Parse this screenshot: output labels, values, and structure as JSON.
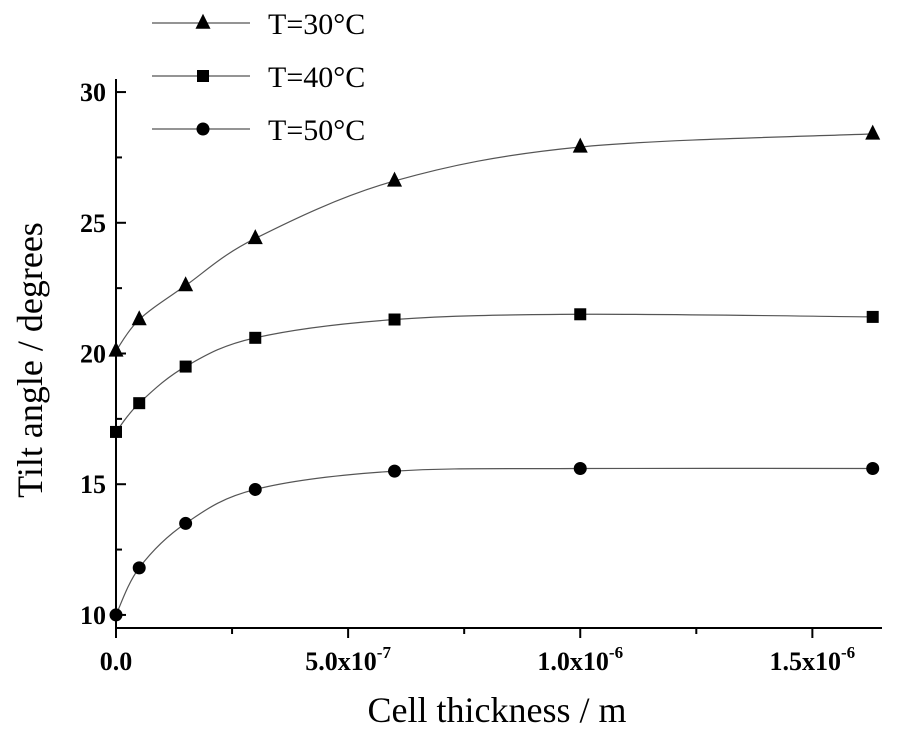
{
  "chart_data": {
    "type": "line",
    "title": "",
    "xlabel": "Cell thickness / m",
    "ylabel": "Tilt angle / degrees",
    "xlim": [
      0,
      1.65e-06
    ],
    "ylim": [
      9.5,
      30.5
    ],
    "x_ticks": [
      {
        "value": 0,
        "label": "0.0",
        "sup": ""
      },
      {
        "value": 5e-07,
        "label": "5.0x10",
        "sup": "-7"
      },
      {
        "value": 1e-06,
        "label": "1.0x10",
        "sup": "-6"
      },
      {
        "value": 1.5e-06,
        "label": "1.5x10",
        "sup": "-6"
      }
    ],
    "y_ticks": [
      {
        "value": 10,
        "label": "10"
      },
      {
        "value": 15,
        "label": "15"
      },
      {
        "value": 20,
        "label": "20"
      },
      {
        "value": 25,
        "label": "25"
      },
      {
        "value": 30,
        "label": "30"
      }
    ],
    "grid": false,
    "legend_position": "top-left, above plot",
    "series": [
      {
        "name": "T=30°C",
        "marker": "triangle",
        "x": [
          0,
          5e-08,
          1.5e-07,
          3e-07,
          6e-07,
          1e-06,
          1.63e-06
        ],
        "y": [
          20.1,
          21.3,
          22.6,
          24.4,
          26.6,
          27.9,
          28.4
        ]
      },
      {
        "name": "T=40°C",
        "marker": "square",
        "x": [
          0,
          5e-08,
          1.5e-07,
          3e-07,
          6e-07,
          1e-06,
          1.63e-06
        ],
        "y": [
          17.0,
          18.1,
          19.5,
          20.6,
          21.3,
          21.5,
          21.4
        ]
      },
      {
        "name": "T=50°C",
        "marker": "circle",
        "x": [
          0,
          5e-08,
          1.5e-07,
          3e-07,
          6e-07,
          1e-06,
          1.63e-06
        ],
        "y": [
          10.0,
          11.8,
          13.5,
          14.8,
          15.5,
          15.6,
          15.6
        ]
      }
    ]
  }
}
